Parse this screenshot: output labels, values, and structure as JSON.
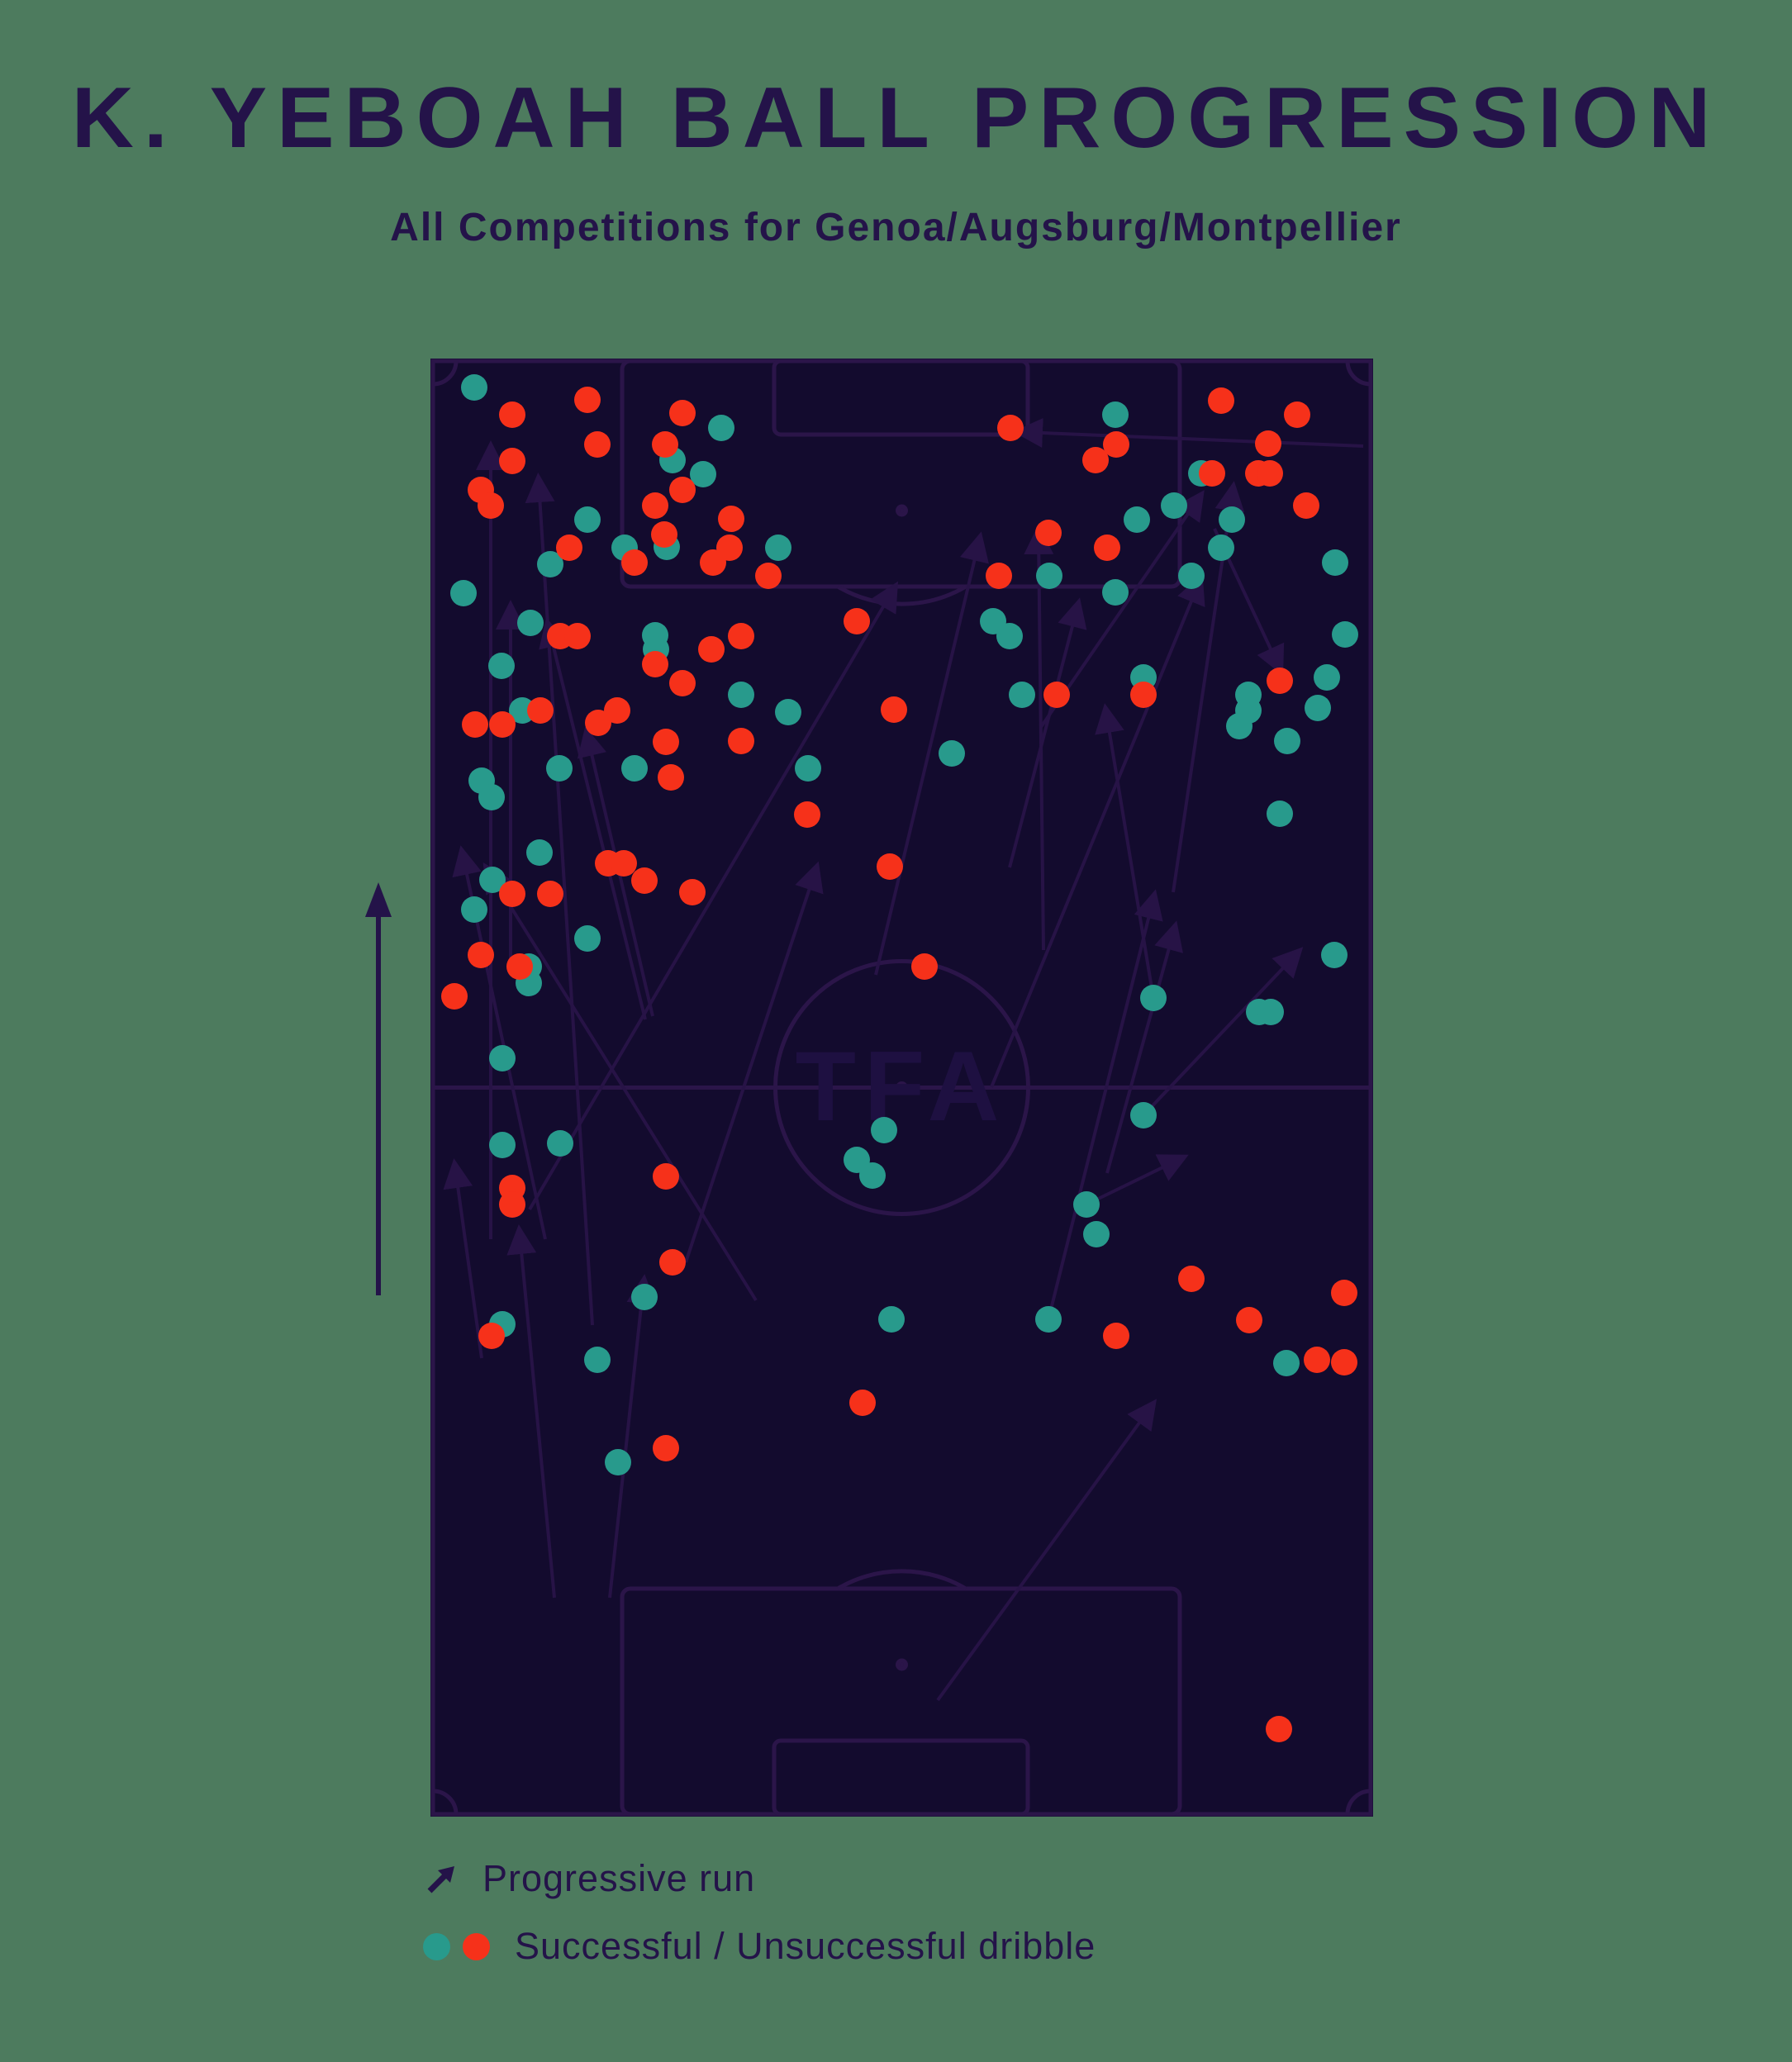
{
  "title": "K. YEBOAH BALL PROGRESSION",
  "subtitle": "All Competitions for Genoa/Augsburg/Montpellier",
  "watermark": "TFA",
  "legend": {
    "progressive_run": "Progressive run",
    "dribble": "Successful / Unsuccessful dribble"
  },
  "colors": {
    "background": "#4d7b5e",
    "heading": "#241349",
    "pitch_background": "#130b2e",
    "pitch_line": "#2b1549",
    "arrow": "#271346",
    "successful": "#289a8c",
    "unsuccessful": "#f6311a"
  },
  "chart_data": {
    "type": "scatter",
    "description": "Vertical football pitch map; attacking direction bottom-to-top; dots are dribbles, arrows are progressive runs",
    "pitch_viewbox": [
      1141,
      1765
    ],
    "dot_radius": 16,
    "successful_dribbles": [
      [
        53,
        35
      ],
      [
        352,
        84
      ],
      [
        293,
        123
      ],
      [
        330,
        140
      ],
      [
        190,
        195
      ],
      [
        235,
        229
      ],
      [
        286,
        228
      ],
      [
        145,
        249
      ],
      [
        421,
        229
      ],
      [
        40,
        284
      ],
      [
        121,
        320
      ],
      [
        272,
        335
      ],
      [
        273,
        352
      ],
      [
        86,
        372
      ],
      [
        376,
        407
      ],
      [
        111,
        426
      ],
      [
        433,
        428
      ],
      [
        156,
        496
      ],
      [
        247,
        496
      ],
      [
        457,
        496
      ],
      [
        62,
        511
      ],
      [
        74,
        531
      ],
      [
        132,
        598
      ],
      [
        829,
        68
      ],
      [
        933,
        139
      ],
      [
        900,
        178
      ],
      [
        855,
        195
      ],
      [
        970,
        195
      ],
      [
        957,
        229
      ],
      [
        1095,
        247
      ],
      [
        749,
        263
      ],
      [
        921,
        263
      ],
      [
        829,
        283
      ],
      [
        681,
        318
      ],
      [
        701,
        336
      ],
      [
        1107,
        334
      ],
      [
        863,
        386
      ],
      [
        1085,
        386
      ],
      [
        716,
        407
      ],
      [
        990,
        407
      ],
      [
        990,
        426
      ],
      [
        979,
        445
      ],
      [
        1074,
        423
      ],
      [
        1037,
        463
      ],
      [
        631,
        478
      ],
      [
        1028,
        551
      ],
      [
        75,
        631
      ],
      [
        53,
        667
      ],
      [
        190,
        702
      ],
      [
        119,
        736
      ],
      [
        119,
        756
      ],
      [
        87,
        847
      ],
      [
        87,
        952
      ],
      [
        157,
        950
      ],
      [
        259,
        1136
      ],
      [
        87,
        1169
      ],
      [
        202,
        1212
      ],
      [
        549,
        934
      ],
      [
        516,
        970
      ],
      [
        535,
        989
      ],
      [
        558,
        1163
      ],
      [
        1094,
        722
      ],
      [
        875,
        774
      ],
      [
        1003,
        791
      ],
      [
        1017,
        791
      ],
      [
        863,
        916
      ],
      [
        794,
        1024
      ],
      [
        806,
        1060
      ],
      [
        748,
        1163
      ],
      [
        1036,
        1216
      ],
      [
        227,
        1336
      ]
    ],
    "unsuccessful_dribbles": [
      [
        99,
        68
      ],
      [
        190,
        50
      ],
      [
        305,
        66
      ],
      [
        202,
        104
      ],
      [
        284,
        104
      ],
      [
        99,
        124
      ],
      [
        61,
        159
      ],
      [
        73,
        178
      ],
      [
        305,
        159
      ],
      [
        272,
        178
      ],
      [
        168,
        229
      ],
      [
        364,
        194
      ],
      [
        283,
        213
      ],
      [
        247,
        247
      ],
      [
        362,
        229
      ],
      [
        342,
        247
      ],
      [
        409,
        263
      ],
      [
        516,
        318
      ],
      [
        157,
        336
      ],
      [
        178,
        336
      ],
      [
        340,
        352
      ],
      [
        376,
        336
      ],
      [
        272,
        370
      ],
      [
        305,
        393
      ],
      [
        133,
        426
      ],
      [
        226,
        426
      ],
      [
        54,
        443
      ],
      [
        87,
        443
      ],
      [
        203,
        441
      ],
      [
        561,
        425
      ],
      [
        285,
        464
      ],
      [
        376,
        463
      ],
      [
        291,
        507
      ],
      [
        456,
        552
      ],
      [
        556,
        615
      ],
      [
        702,
        84
      ],
      [
        957,
        51
      ],
      [
        1049,
        68
      ],
      [
        830,
        104
      ],
      [
        805,
        123
      ],
      [
        1014,
        103
      ],
      [
        946,
        139
      ],
      [
        1002,
        139
      ],
      [
        1016,
        139
      ],
      [
        1060,
        178
      ],
      [
        748,
        211
      ],
      [
        819,
        229
      ],
      [
        688,
        263
      ],
      [
        1028,
        390
      ],
      [
        758,
        407
      ],
      [
        863,
        407
      ],
      [
        215,
        611
      ],
      [
        234,
        611
      ],
      [
        259,
        632
      ],
      [
        99,
        648
      ],
      [
        145,
        648
      ],
      [
        317,
        646
      ],
      [
        61,
        722
      ],
      [
        108,
        736
      ],
      [
        29,
        772
      ],
      [
        285,
        990
      ],
      [
        99,
        1004
      ],
      [
        99,
        1024
      ],
      [
        293,
        1094
      ],
      [
        74,
        1183
      ],
      [
        598,
        736
      ],
      [
        921,
        1114
      ],
      [
        830,
        1183
      ],
      [
        991,
        1164
      ],
      [
        1106,
        1131
      ],
      [
        1073,
        1212
      ],
      [
        1106,
        1215
      ],
      [
        285,
        1319
      ],
      [
        523,
        1264
      ],
      [
        1027,
        1659
      ]
    ],
    "progressive_runs": [
      [
        73,
        1066,
        73,
        111
      ],
      [
        97,
        726,
        97,
        304
      ],
      [
        139,
        1066,
        39,
        601
      ],
      [
        196,
        1170,
        131,
        150
      ],
      [
        260,
        800,
        143,
        325
      ],
      [
        739,
        446,
        930,
        169
      ],
      [
        899,
        646,
        971,
        160
      ],
      [
        742,
        716,
        736,
        213
      ],
      [
        875,
        774,
        818,
        429
      ],
      [
        679,
        882,
        930,
        272
      ],
      [
        949,
        206,
        1027,
        373
      ],
      [
        819,
        986,
        900,
        692
      ],
      [
        748,
        1163,
        875,
        654
      ],
      [
        794,
        1024,
        907,
        969
      ],
      [
        614,
        1624,
        872,
        1269
      ],
      [
        269,
        796,
        190,
        457
      ],
      [
        309,
        1094,
        466,
        620
      ],
      [
        863,
        916,
        1048,
        721
      ],
      [
        701,
        616,
        783,
        301
      ],
      [
        120,
        1030,
        560,
        280
      ],
      [
        539,
        746,
        664,
        221
      ],
      [
        1129,
        106,
        717,
        89
      ],
      [
        394,
        1140,
        70,
        620
      ],
      [
        150,
        1500,
        108,
        1060
      ],
      [
        217,
        1500,
        258,
        1120
      ],
      [
        62,
        1210,
        30,
        980
      ]
    ]
  }
}
